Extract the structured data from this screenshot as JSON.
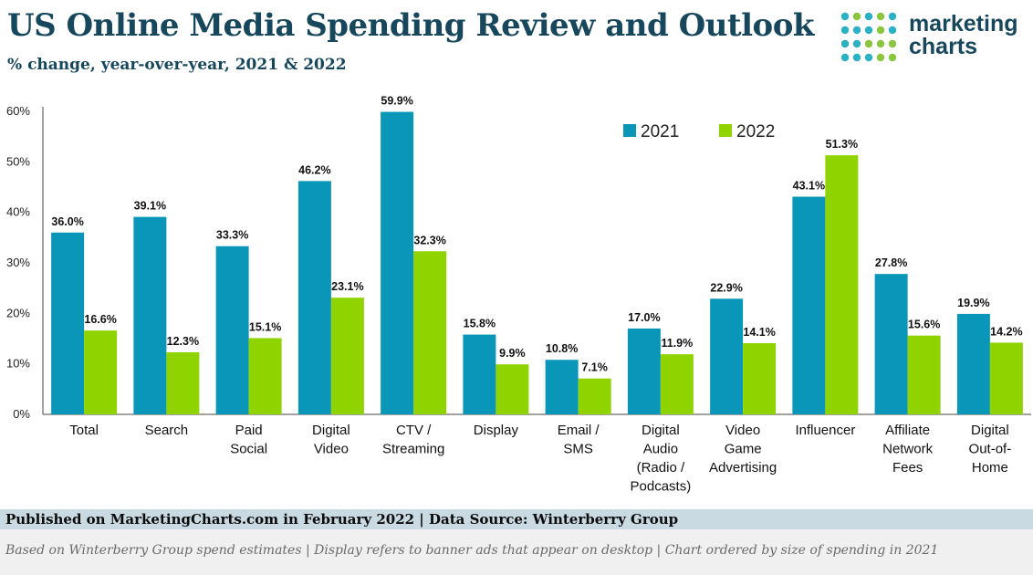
{
  "header": {
    "title": "US Online Media Spending Review and Outlook",
    "subtitle": "% change, year-over-year, 2021 & 2022"
  },
  "logo": {
    "line1": "marketing",
    "line2": "charts",
    "dot_colors": [
      "#2bb0c4",
      "#8cc63f"
    ]
  },
  "chart_data": {
    "type": "bar",
    "categories": [
      [
        "Total"
      ],
      [
        "Search"
      ],
      [
        "Paid",
        "Social"
      ],
      [
        "Digital",
        "Video"
      ],
      [
        "CTV /",
        "Streaming"
      ],
      [
        "Display"
      ],
      [
        "Email /",
        "SMS"
      ],
      [
        "Digital",
        "Audio",
        "(Radio /",
        "Podcasts)"
      ],
      [
        "Video",
        "Game",
        "Advertising"
      ],
      [
        "Influencer"
      ],
      [
        "Affiliate",
        "Network",
        "Fees"
      ],
      [
        "Digital",
        "Out-of-",
        "Home"
      ]
    ],
    "series": [
      {
        "name": "2021",
        "color": "#0a96b8",
        "values": [
          36.0,
          39.1,
          33.3,
          46.2,
          59.9,
          15.8,
          10.8,
          17.0,
          22.9,
          43.1,
          27.8,
          19.9
        ],
        "labels": [
          "36.0%",
          "39.1%",
          "33.3%",
          "46.2%",
          "59.9%",
          "15.8%",
          "10.8%",
          "17.0%",
          "22.9%",
          "43.1%",
          "27.8%",
          "19.9%"
        ]
      },
      {
        "name": "2022",
        "color": "#8fd400",
        "values": [
          16.6,
          12.3,
          15.1,
          23.1,
          32.3,
          9.9,
          7.1,
          11.9,
          14.1,
          51.3,
          15.6,
          14.2
        ],
        "labels": [
          "16.6%",
          "12.3%",
          "15.1%",
          "23.1%",
          "32.3%",
          "9.9%",
          "7.1%",
          "11.9%",
          "14.1%",
          "51.3%",
          "15.6%",
          "14.2%"
        ]
      }
    ],
    "ylim": [
      0,
      60
    ],
    "yticks": [
      "0%",
      "10%",
      "20%",
      "30%",
      "40%",
      "50%",
      "60%"
    ],
    "grid": false,
    "legend_position": "top-right"
  },
  "footer": {
    "source": "Published on MarketingCharts.com in February 2022 | Data Source: Winterberry Group",
    "note": "Based on Winterberry Group spend estimates | Display refers to banner ads that appear on desktop | Chart ordered by size of spending in 2021"
  }
}
